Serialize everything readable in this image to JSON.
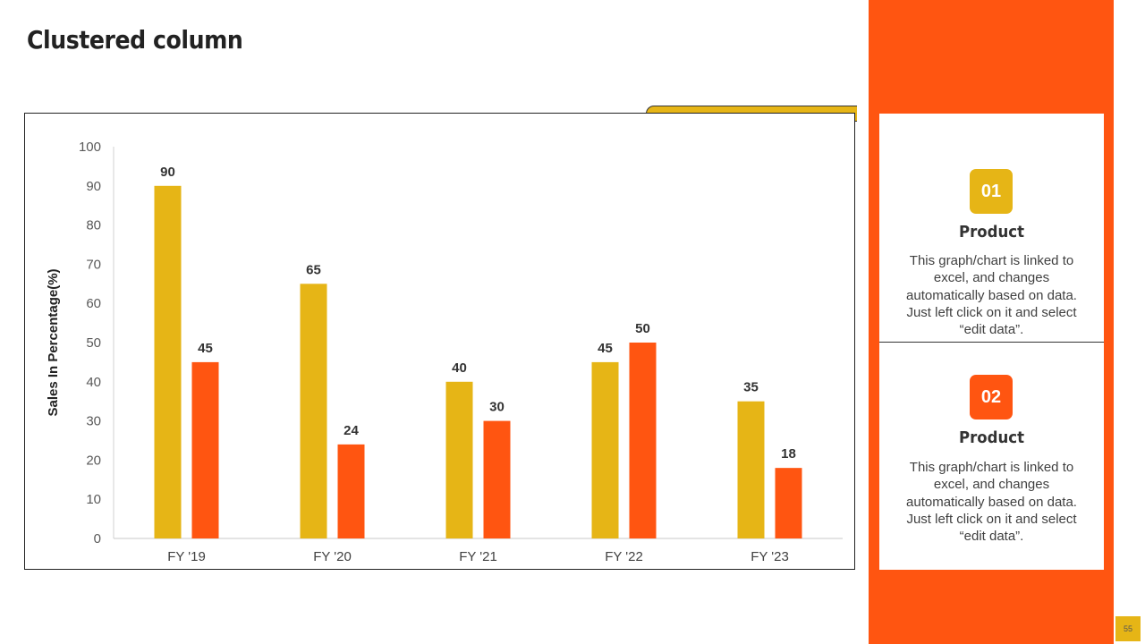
{
  "slide": {
    "title": "Clustered column",
    "page_number": "55"
  },
  "colors": {
    "series1": "#E6B516",
    "series2": "#FF5511",
    "panel": "#FF5511",
    "accent": "#E6B516",
    "badge1": "#E6B516",
    "badge2": "#FF5511",
    "page_num_bg": "#E6B516"
  },
  "cards": [
    {
      "badge": "01",
      "title": "Product",
      "description": "This graph/chart is linked to excel, and changes automatically based on data. Just left click on it and select “edit data”."
    },
    {
      "badge": "02",
      "title": "Product",
      "description": "This graph/chart is linked to excel, and changes automatically based on data. Just left click on it and select “edit data”."
    }
  ],
  "chart_data": {
    "type": "bar",
    "categories": [
      "FY '19",
      "FY '20",
      "FY '21",
      "FY '22",
      "FY '23"
    ],
    "series": [
      {
        "values": [
          90,
          65,
          40,
          45,
          35
        ]
      },
      {
        "values": [
          45,
          24,
          30,
          50,
          18
        ]
      }
    ],
    "ylabel": "Sales In Percentage(%)",
    "xlabel": "",
    "ylim": [
      0,
      100
    ],
    "yticks": [
      0,
      10,
      20,
      30,
      40,
      50,
      60,
      70,
      80,
      90,
      100
    ],
    "grid": false,
    "data_labels": true,
    "legend": "none"
  }
}
